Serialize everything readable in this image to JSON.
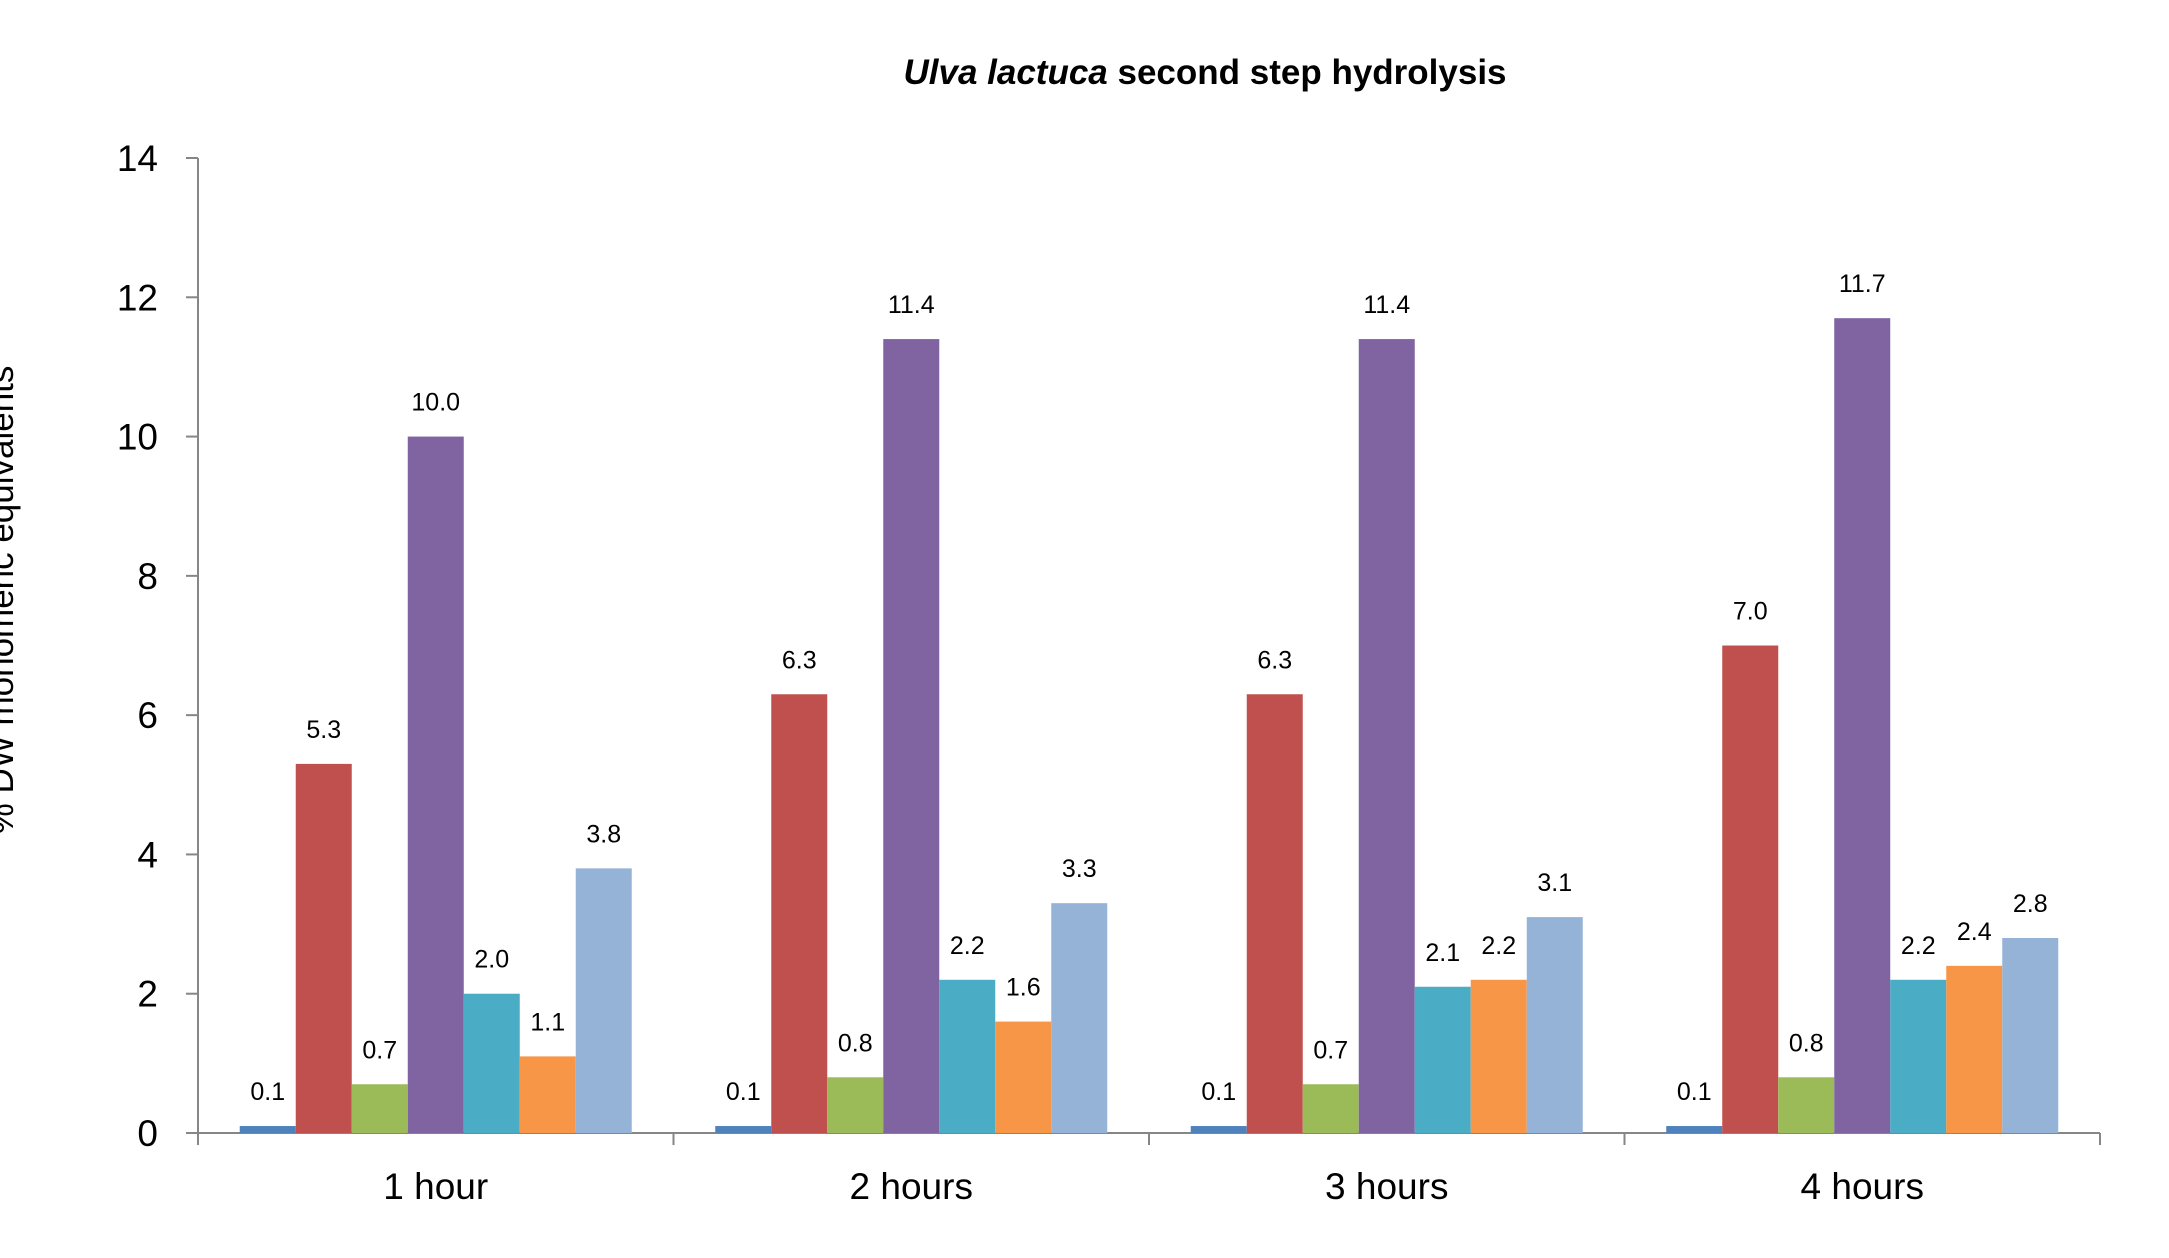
{
  "chart_data": {
    "type": "bar",
    "title_italic": "Ulva lactuca",
    "title_rest": " second step hydrolysis",
    "ylabel": "% DW monomeric equivalents",
    "xlabel": "",
    "categories": [
      "1 hour",
      "2 hours",
      "3 hours",
      "4 hours"
    ],
    "ylim": [
      0,
      14
    ],
    "yticks": [
      0,
      2,
      4,
      6,
      8,
      10,
      12,
      14
    ],
    "grid": false,
    "legend": "none",
    "series": [
      {
        "color": "#4F81BD",
        "values": [
          0.1,
          0.1,
          0.1,
          0.1
        ],
        "labels": [
          "0.1",
          "0.1",
          "0.1",
          "0.1"
        ]
      },
      {
        "color": "#C0504D",
        "values": [
          5.3,
          6.3,
          6.3,
          7.0
        ],
        "labels": [
          "5.3",
          "6.3",
          "6.3",
          "7.0"
        ]
      },
      {
        "color": "#9BBB59",
        "values": [
          0.7,
          0.8,
          0.7,
          0.8
        ],
        "labels": [
          "0.7",
          "0.8",
          "0.7",
          "0.8"
        ]
      },
      {
        "color": "#8064A2",
        "values": [
          10.0,
          11.4,
          11.4,
          11.7
        ],
        "labels": [
          "10.0",
          "11.4",
          "11.4",
          "11.7"
        ]
      },
      {
        "color": "#4BACC6",
        "values": [
          2.0,
          2.2,
          2.1,
          2.2
        ],
        "labels": [
          "2.0",
          "2.2",
          "2.1",
          "2.2"
        ]
      },
      {
        "color": "#F79646",
        "values": [
          1.1,
          1.6,
          2.2,
          2.4
        ],
        "labels": [
          "1.1",
          "1.6",
          "2.2",
          "2.4"
        ]
      },
      {
        "color": "#95B3D7",
        "values": [
          3.8,
          3.3,
          3.1,
          2.8
        ],
        "labels": [
          "3.8",
          "3.3",
          "3.1",
          "2.8"
        ]
      }
    ]
  }
}
